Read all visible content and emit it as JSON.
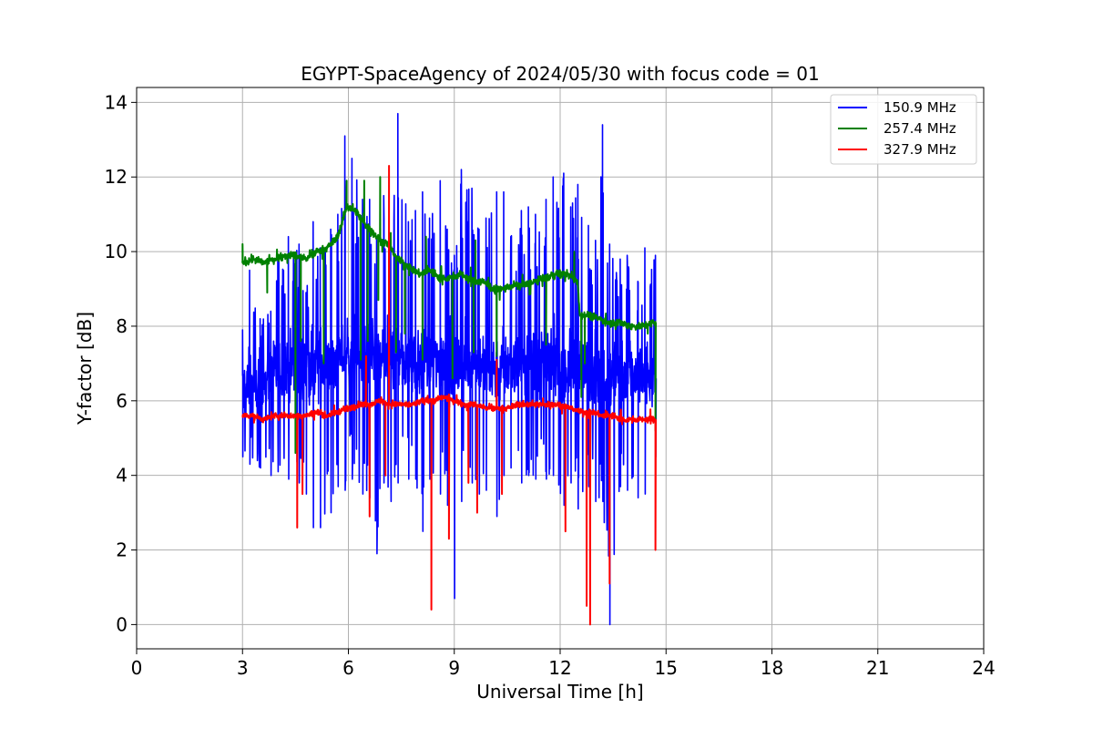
{
  "chart_data": {
    "type": "line",
    "title": "EGYPT-SpaceAgency of 2024/05/30 with focus code = 01",
    "xlabel": "Universal Time [h]",
    "ylabel": "Y-factor [dB]",
    "xlim": [
      0,
      24
    ],
    "ylim": [
      -0.65,
      14.4
    ],
    "xticks": [
      0,
      3,
      6,
      9,
      12,
      15,
      18,
      21,
      24
    ],
    "yticks": [
      0,
      2,
      4,
      6,
      8,
      10,
      12,
      14
    ],
    "grid": true,
    "legend_position": "top-right",
    "series": [
      {
        "name": "150.9 MHz",
        "color": "#0000ff",
        "x": [
          3.0,
          3.2,
          3.5,
          3.8,
          4.0,
          4.3,
          4.6,
          4.8,
          5.0,
          5.2,
          5.5,
          5.7,
          5.9,
          6.1,
          6.4,
          6.6,
          6.8,
          7.0,
          7.2,
          7.4,
          7.7,
          7.9,
          8.1,
          8.3,
          8.6,
          8.8,
          9.0,
          9.2,
          9.5,
          9.7,
          9.9,
          10.2,
          10.4,
          10.6,
          10.9,
          11.1,
          11.3,
          11.6,
          11.8,
          12.1,
          12.3,
          12.5,
          12.8,
          13.0,
          13.2,
          13.4,
          13.7,
          13.9,
          14.2,
          14.4,
          14.7
        ],
        "low": [
          4.5,
          4.3,
          4.2,
          4.0,
          4.1,
          3.9,
          3.8,
          3.5,
          2.6,
          2.6,
          3.0,
          3.7,
          3.6,
          3.9,
          3.5,
          3.4,
          1.9,
          3.8,
          3.3,
          3.8,
          3.9,
          3.9,
          2.5,
          3.9,
          3.5,
          3.2,
          0.7,
          3.3,
          3.8,
          3.5,
          3.6,
          2.9,
          4.0,
          4.2,
          3.8,
          4.0,
          3.9,
          3.9,
          4.0,
          3.2,
          3.8,
          3.1,
          3.7,
          3.3,
          3.3,
          0.0,
          3.7,
          3.6,
          3.4,
          3.5,
          4.5
        ],
        "high": [
          7.9,
          9.5,
          8.2,
          8.4,
          9.8,
          10.4,
          10.2,
          8.9,
          10.8,
          10.1,
          10.6,
          11.0,
          13.1,
          12.5,
          11.4,
          11.4,
          10.4,
          11.5,
          10.4,
          13.7,
          10.8,
          11.1,
          11.6,
          10.9,
          11.9,
          10.6,
          9.9,
          12.2,
          11.7,
          10.6,
          10.9,
          11.6,
          11.6,
          10.4,
          11.1,
          11.2,
          11.0,
          11.4,
          12.0,
          12.1,
          11.2,
          11.8,
          10.7,
          10.3,
          13.4,
          10.2,
          9.8,
          9.9,
          9.2,
          10.1,
          9.9
        ],
        "base": [
          6.2,
          6.4,
          6.5,
          6.6,
          6.7,
          6.8,
          6.8,
          6.9,
          6.9,
          7.0,
          7.0,
          7.1,
          7.3,
          7.4,
          7.2,
          7.1,
          7.0,
          7.1,
          7.2,
          7.3,
          7.1,
          7.0,
          7.0,
          6.9,
          7.1,
          7.0,
          6.8,
          7.0,
          7.1,
          7.0,
          6.9,
          6.9,
          6.8,
          7.0,
          7.0,
          7.1,
          7.0,
          6.9,
          7.0,
          6.8,
          6.9,
          6.8,
          6.7,
          6.8,
          6.9,
          6.6,
          6.7,
          6.7,
          6.6,
          6.7,
          6.6
        ]
      },
      {
        "name": "257.4 MHz",
        "color": "#008000",
        "x": [
          3.0,
          3.3,
          3.6,
          3.9,
          4.2,
          4.5,
          4.8,
          5.1,
          5.4,
          5.7,
          5.95,
          6.2,
          6.5,
          6.8,
          7.1,
          7.4,
          7.7,
          8.0,
          8.3,
          8.6,
          8.9,
          9.2,
          9.5,
          9.8,
          10.1,
          10.4,
          10.7,
          11.0,
          11.3,
          11.6,
          11.9,
          12.2,
          12.5,
          12.55,
          12.8,
          13.1,
          13.4,
          13.7,
          14.0,
          14.3,
          14.7
        ],
        "values": [
          9.7,
          9.8,
          9.7,
          9.8,
          9.9,
          9.9,
          9.8,
          10.0,
          10.1,
          10.4,
          11.2,
          11.1,
          10.7,
          10.4,
          10.2,
          9.8,
          9.6,
          9.4,
          9.5,
          9.3,
          9.3,
          9.4,
          9.2,
          9.2,
          9.0,
          9.0,
          9.1,
          9.1,
          9.2,
          9.3,
          9.4,
          9.4,
          9.2,
          8.3,
          8.3,
          8.2,
          8.1,
          8.1,
          8.0,
          8.0,
          8.1
        ],
        "dips": [
          [
            3.7,
            8.9
          ],
          [
            4.5,
            4.6
          ],
          [
            4.65,
            7.6
          ],
          [
            5.3,
            7.0
          ],
          [
            6.35,
            7.1
          ],
          [
            6.55,
            7.6
          ],
          [
            6.85,
            8.7
          ],
          [
            7.35,
            7.3
          ],
          [
            7.6,
            7.8
          ],
          [
            8.1,
            7.1
          ],
          [
            8.95,
            6.6
          ],
          [
            9.55,
            7.3
          ],
          [
            10.2,
            7.2
          ],
          [
            11.6,
            7.5
          ],
          [
            12.6,
            6.1
          ],
          [
            12.7,
            7.0
          ],
          [
            14.7,
            5.2
          ]
        ],
        "spikes": [
          [
            3.0,
            10.2
          ],
          [
            5.95,
            11.9
          ],
          [
            6.45,
            11.9
          ],
          [
            6.9,
            12.0
          ],
          [
            7.2,
            10.5
          ],
          [
            8.2,
            10.4
          ],
          [
            9.6,
            10.3
          ],
          [
            12.4,
            10.0
          ]
        ]
      },
      {
        "name": "327.9 MHz",
        "color": "#ff0000",
        "x": [
          3.0,
          3.3,
          3.6,
          3.9,
          4.2,
          4.5,
          4.8,
          5.1,
          5.4,
          5.7,
          6.0,
          6.3,
          6.6,
          6.9,
          7.2,
          7.5,
          7.8,
          8.1,
          8.4,
          8.7,
          9.0,
          9.3,
          9.6,
          9.9,
          10.2,
          10.5,
          10.8,
          11.1,
          11.4,
          11.7,
          12.0,
          12.3,
          12.6,
          12.9,
          13.2,
          13.5,
          13.8,
          14.1,
          14.4,
          14.7
        ],
        "values": [
          5.6,
          5.6,
          5.5,
          5.6,
          5.6,
          5.6,
          5.6,
          5.7,
          5.6,
          5.7,
          5.8,
          5.9,
          5.9,
          6.0,
          5.9,
          5.9,
          5.9,
          6.0,
          6.0,
          6.1,
          6.0,
          5.9,
          5.9,
          5.8,
          5.8,
          5.8,
          5.9,
          5.9,
          5.9,
          5.9,
          5.9,
          5.8,
          5.7,
          5.7,
          5.6,
          5.6,
          5.5,
          5.5,
          5.5,
          5.5
        ],
        "dips": [
          [
            4.55,
            2.6
          ],
          [
            4.7,
            3.5
          ],
          [
            6.6,
            2.9
          ],
          [
            7.05,
            4.0
          ],
          [
            8.35,
            0.4
          ],
          [
            8.85,
            2.3
          ],
          [
            9.4,
            3.8
          ],
          [
            9.65,
            3.0
          ],
          [
            10.35,
            3.5
          ],
          [
            12.15,
            2.5
          ],
          [
            12.75,
            0.5
          ],
          [
            12.85,
            0.0
          ],
          [
            13.4,
            1.1
          ],
          [
            14.7,
            2.0
          ]
        ],
        "spikes": [
          [
            6.5,
            7.2
          ],
          [
            7.15,
            12.3
          ],
          [
            10.2,
            7.1
          ]
        ]
      }
    ]
  }
}
